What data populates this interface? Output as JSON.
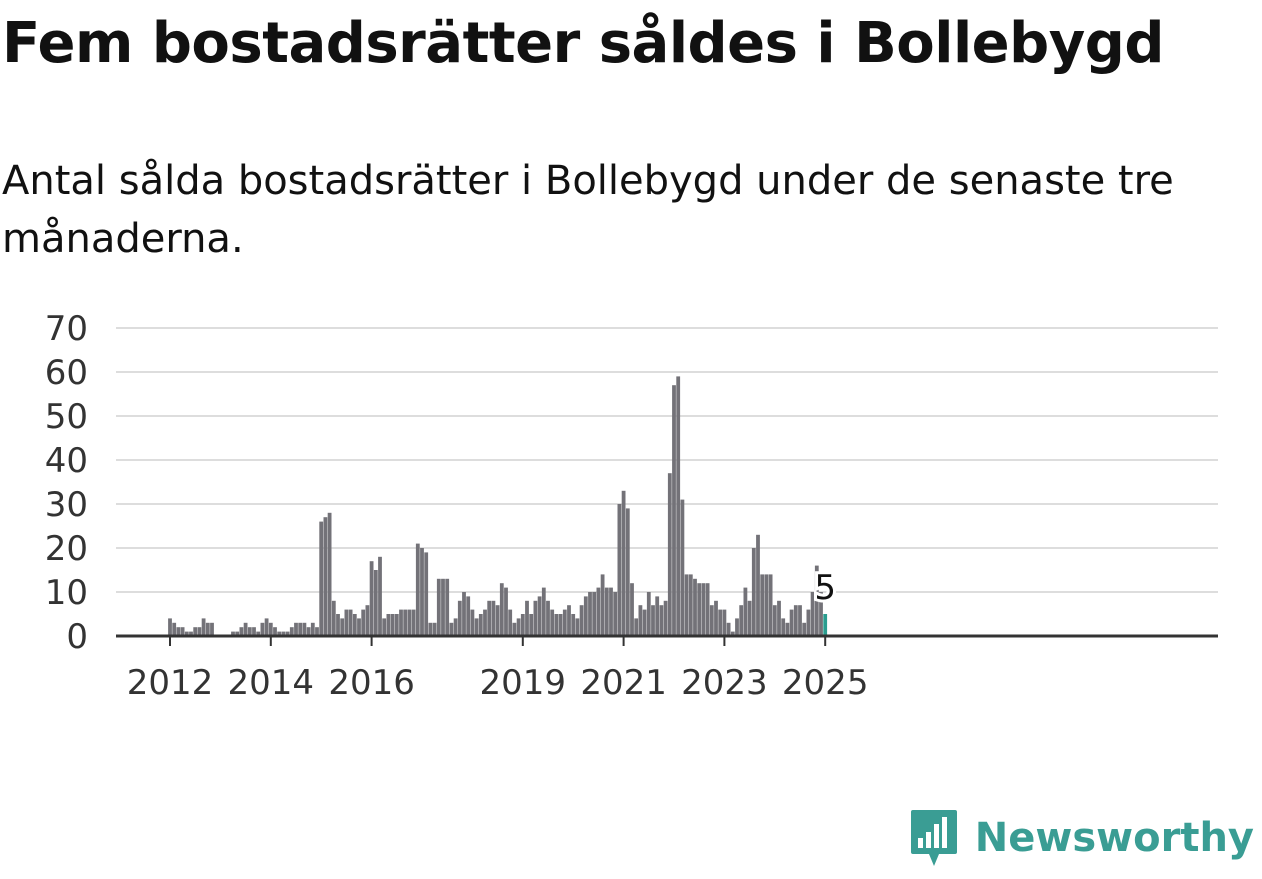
{
  "title": "Fem bostadsrätter såldes i Bollebygd",
  "subtitle": "Antal sålda bostadsrätter i Bollebygd under de senaste tre månaderna.",
  "brand": {
    "name": "Newsworthy",
    "icon": "newsworthy-logo-icon",
    "color": "#3a9d94"
  },
  "colors": {
    "bars": "#737278",
    "highlight": "#2a9d8f",
    "grid": "#dddddd",
    "axis": "#333333"
  },
  "chart_data": {
    "type": "bar",
    "title": "Fem bostadsrätter såldes i Bollebygd",
    "xlabel": "",
    "ylabel": "",
    "ylim": [
      0,
      70
    ],
    "yticks": [
      0,
      10,
      20,
      30,
      40,
      50,
      60,
      70
    ],
    "xticks": [
      "2012",
      "2014",
      "2016",
      "2019",
      "2021",
      "2023",
      "2025"
    ],
    "grid": true,
    "legend": "none",
    "start_month": "2012-01",
    "end_month": "2025-01",
    "note": "Monthly values, one per month from 2012-01 to 2025-01 (estimated from the bars).",
    "values": [
      4,
      3,
      2,
      2,
      1,
      1,
      2,
      2,
      4,
      3,
      3,
      0,
      0,
      0,
      0,
      1,
      1,
      2,
      3,
      2,
      2,
      1,
      3,
      4,
      3,
      2,
      1,
      1,
      1,
      2,
      3,
      3,
      3,
      2,
      3,
      2,
      26,
      27,
      28,
      8,
      5,
      4,
      6,
      6,
      5,
      4,
      6,
      7,
      17,
      15,
      18,
      4,
      5,
      5,
      5,
      6,
      6,
      6,
      6,
      21,
      20,
      19,
      3,
      3,
      13,
      13,
      13,
      3,
      4,
      8,
      10,
      9,
      6,
      4,
      5,
      6,
      8,
      8,
      7,
      12,
      11,
      6,
      3,
      4,
      5,
      8,
      5,
      8,
      9,
      11,
      8,
      6,
      5,
      5,
      6,
      7,
      5,
      4,
      7,
      9,
      10,
      10,
      11,
      14,
      11,
      11,
      10,
      30,
      33,
      29,
      12,
      4,
      7,
      6,
      10,
      7,
      9,
      7,
      8,
      37,
      57,
      59,
      31,
      14,
      14,
      13,
      12,
      12,
      12,
      7,
      8,
      6,
      6,
      3,
      1,
      4,
      7,
      11,
      8,
      20,
      23,
      14,
      14,
      14,
      7,
      8,
      4,
      3,
      6,
      7,
      7,
      3,
      6,
      10,
      16,
      10,
      5
    ],
    "highlight_last": true,
    "last_value_label": "5"
  }
}
